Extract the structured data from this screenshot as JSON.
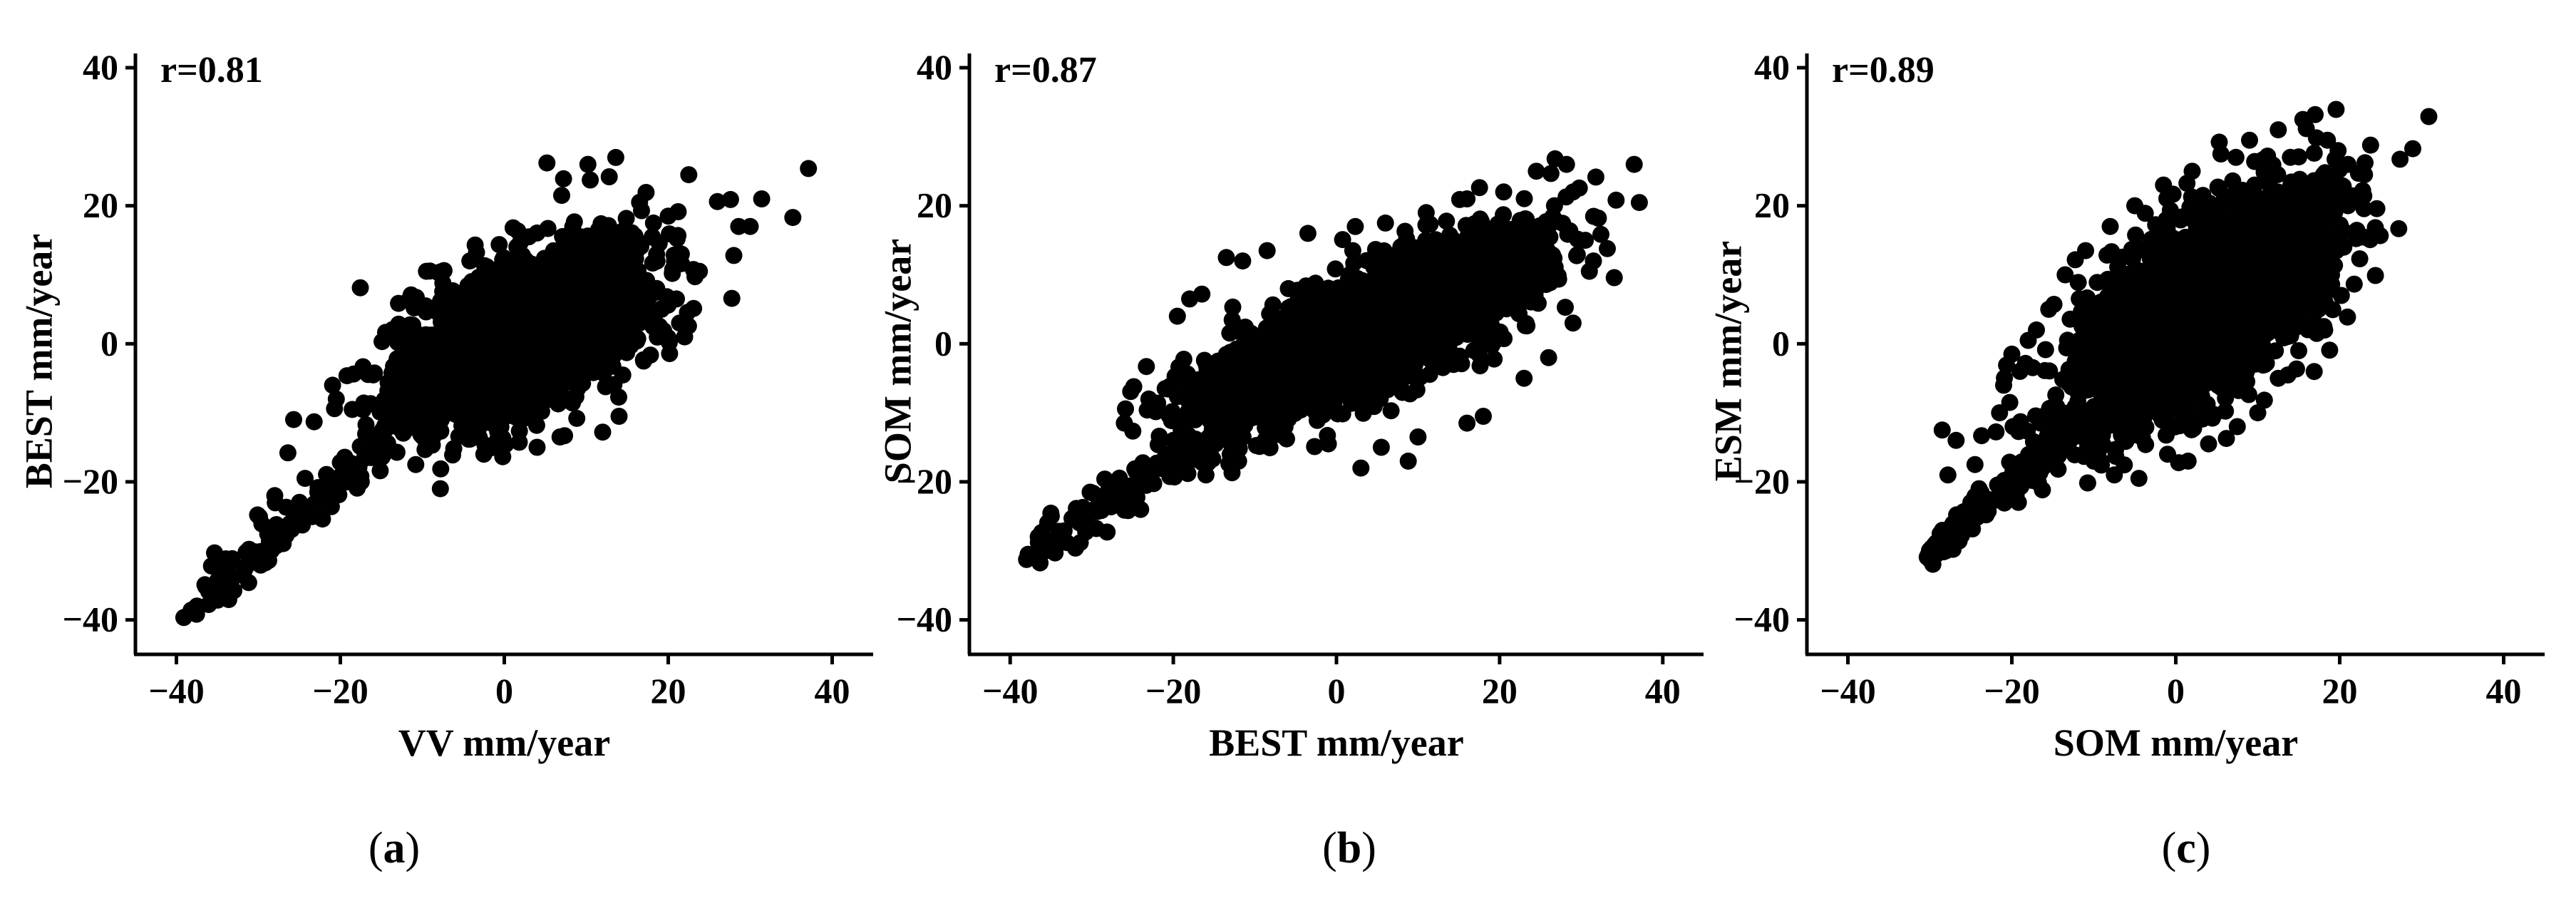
{
  "chart_data": [
    {
      "type": "scatter",
      "title": "",
      "panel_label": "a",
      "annotation": "r=0.81",
      "r": 0.81,
      "xlabel": "VV mm/year",
      "ylabel": "BEST mm/year",
      "xlim": [
        -45,
        45
      ],
      "ylim": [
        -45,
        40
      ],
      "xticks": [
        -40,
        -20,
        0,
        20,
        40
      ],
      "yticks": [
        -40,
        -20,
        0,
        20,
        40
      ],
      "xtick_labels": [
        "−40",
        "−20",
        "0",
        "20",
        "40"
      ],
      "ytick_labels": [
        "−40",
        "−20",
        "0",
        "20",
        "40"
      ],
      "grid": false,
      "legend": "none",
      "point_color": "#000000",
      "cloud": {
        "n": 2600,
        "center": [
          2,
          1
        ],
        "sd_major": 8.5,
        "sd_minor": 4.5,
        "slope": 0.72,
        "seed": 11
      },
      "tail": {
        "n": 120,
        "from": [
          -38,
          -38
        ],
        "to": [
          -12,
          -12
        ],
        "spread": 1.6,
        "seed": 21
      },
      "points": [
        [
          -38.2,
          -38.6
        ],
        [
          -37.5,
          -38.0
        ],
        [
          -35.2,
          -36.8
        ],
        [
          -33.0,
          -33.8
        ],
        [
          -31.5,
          -30.2
        ],
        [
          -30.1,
          -24.8
        ],
        [
          -28.0,
          -22.0
        ],
        [
          -26.4,
          -15.8
        ],
        [
          -23.2,
          -11.3
        ],
        [
          -20.5,
          -8.0
        ],
        [
          -16.0,
          -4.5
        ],
        [
          -14.2,
          -6.8
        ],
        [
          -13.0,
          0.2
        ],
        [
          -12.4,
          2.5
        ],
        [
          -11.0,
          5.2
        ],
        [
          -9.5,
          10.5
        ],
        [
          -7.5,
          8.8
        ],
        [
          -4.2,
          12.0
        ],
        [
          -2.0,
          10.4
        ],
        [
          0.8,
          10.0
        ],
        [
          3.0,
          15.5
        ],
        [
          5.2,
          26.2
        ],
        [
          7.0,
          21.5
        ],
        [
          10.2,
          26.0
        ],
        [
          11.5,
          16.5
        ],
        [
          12.8,
          24.2
        ],
        [
          13.6,
          27.0
        ],
        [
          16.5,
          20.5
        ],
        [
          18.2,
          17.5
        ],
        [
          20.0,
          18.5
        ],
        [
          21.6,
          13.0
        ],
        [
          22.5,
          24.5
        ],
        [
          23.8,
          10.5
        ],
        [
          26.0,
          20.6
        ],
        [
          27.6,
          20.9
        ],
        [
          28.0,
          12.8
        ],
        [
          28.6,
          17.0
        ],
        [
          30.0,
          17.0
        ],
        [
          31.4,
          21.0
        ],
        [
          35.2,
          18.3
        ],
        [
          37.1,
          25.4
        ],
        [
          14.0,
          -10.5
        ],
        [
          12.0,
          -12.8
        ],
        [
          6.8,
          -13.5
        ],
        [
          4.0,
          -15.0
        ],
        [
          -2.5,
          -16.0
        ],
        [
          -7.8,
          -21.0
        ],
        [
          -10.8,
          -17.5
        ],
        [
          -17.5,
          -19.2
        ],
        [
          -20.0,
          -17.2
        ],
        [
          -21.3,
          -20.0
        ],
        [
          -27.8,
          -26.2
        ],
        [
          -24.3,
          -19.5
        ],
        [
          18.6,
          8.0
        ],
        [
          21.0,
          6.5
        ],
        [
          22.0,
          1.0
        ],
        [
          17.0,
          -2.5
        ],
        [
          16.5,
          3.0
        ]
      ]
    },
    {
      "type": "scatter",
      "title": "",
      "panel_label": "b",
      "annotation": "r=0.87",
      "r": 0.87,
      "xlabel": "BEST mm/year",
      "ylabel": "SOM mm/year",
      "xlim": [
        -45,
        45
      ],
      "ylim": [
        -45,
        40
      ],
      "xticks": [
        -40,
        -20,
        0,
        20,
        40
      ],
      "yticks": [
        -40,
        -20,
        0,
        20,
        40
      ],
      "xtick_labels": [
        "−40",
        "−20",
        "0",
        "20",
        "40"
      ],
      "ytick_labels": [
        "−40",
        "−20",
        "0",
        "20",
        "40"
      ],
      "grid": false,
      "legend": "none",
      "point_color": "#000000",
      "cloud": {
        "n": 3000,
        "center": [
          4,
          2
        ],
        "sd_major": 11.0,
        "sd_minor": 3.6,
        "slope": 0.6,
        "seed": 33
      },
      "tail": {
        "n": 120,
        "from": [
          -38,
          -30
        ],
        "to": [
          -14,
          -13
        ],
        "spread": 1.4,
        "seed": 43
      },
      "points": [
        [
          -37.8,
          -30.5
        ],
        [
          -36.0,
          -28.5
        ],
        [
          -34.5,
          -30.3
        ],
        [
          -32.0,
          -29.6
        ],
        [
          -31.0,
          -26.0
        ],
        [
          -30.2,
          -21.5
        ],
        [
          -28.4,
          -19.6
        ],
        [
          -26.0,
          -11.5
        ],
        [
          -23.0,
          -8.0
        ],
        [
          -21.0,
          -6.5
        ],
        [
          -19.5,
          4.0
        ],
        [
          -18.0,
          6.5
        ],
        [
          -16.5,
          7.2
        ],
        [
          -13.5,
          12.5
        ],
        [
          -11.5,
          12.0
        ],
        [
          -8.5,
          13.5
        ],
        [
          -3.5,
          16.0
        ],
        [
          2.0,
          13.5
        ],
        [
          6.0,
          17.5
        ],
        [
          11.0,
          19.0
        ],
        [
          16.0,
          21.0
        ],
        [
          20.5,
          22.0
        ],
        [
          24.5,
          25.0
        ],
        [
          26.8,
          26.8
        ],
        [
          28.2,
          26.0
        ],
        [
          29.0,
          22.0
        ],
        [
          36.5,
          26.0
        ],
        [
          31.0,
          10.5
        ],
        [
          31.5,
          12.0
        ],
        [
          30.5,
          15.0
        ],
        [
          29.0,
          3.0
        ],
        [
          26.0,
          -2.0
        ],
        [
          23.0,
          -5.0
        ],
        [
          18.0,
          -10.5
        ],
        [
          16.0,
          -11.5
        ],
        [
          10.0,
          -13.5
        ],
        [
          8.8,
          -17.0
        ],
        [
          5.5,
          -15.0
        ],
        [
          3.0,
          -18.0
        ],
        [
          -1.0,
          -14.5
        ],
        [
          -6.5,
          -12.0
        ],
        [
          -12.0,
          -17.0
        ],
        [
          -17.0,
          -15.0
        ],
        [
          -20.0,
          -14.0
        ],
        [
          -24.0,
          -24.0
        ],
        [
          -27.0,
          -22.0
        ],
        [
          -21.0,
          -17.5
        ],
        [
          -16.0,
          -19.0
        ]
      ]
    },
    {
      "type": "scatter",
      "title": "",
      "panel_label": "c",
      "annotation": "r=0.89",
      "r": 0.89,
      "xlabel": "SOM mm/year",
      "ylabel": "ESM mm/year",
      "xlim": [
        -45,
        45
      ],
      "ylim": [
        -45,
        40
      ],
      "xticks": [
        -40,
        -20,
        0,
        20,
        40
      ],
      "yticks": [
        -40,
        -20,
        0,
        20,
        40
      ],
      "xtick_labels": [
        "−40",
        "−20",
        "0",
        "20",
        "40"
      ],
      "ytick_labels": [
        "−40",
        "−20",
        "0",
        "20",
        "40"
      ],
      "grid": false,
      "legend": "none",
      "point_color": "#000000",
      "cloud": {
        "n": 3000,
        "center": [
          3,
          5
        ],
        "sd_major": 10.0,
        "sd_minor": 4.6,
        "slope": 1.1,
        "seed": 55
      },
      "tail": {
        "n": 140,
        "from": [
          -30,
          -30.5
        ],
        "to": [
          -12,
          -12
        ],
        "spread": 1.1,
        "seed": 65
      },
      "points": [
        [
          -30.2,
          -30.6
        ],
        [
          -29.0,
          -29.5
        ],
        [
          -27.5,
          -28.2
        ],
        [
          -26.0,
          -26.0
        ],
        [
          -25.0,
          -23.0
        ],
        [
          -24.0,
          -21.0
        ],
        [
          -27.8,
          -19.0
        ],
        [
          -28.5,
          -12.5
        ],
        [
          -26.8,
          -14.0
        ],
        [
          -24.5,
          -17.5
        ],
        [
          -21.5,
          -10.0
        ],
        [
          -19.0,
          -4.0
        ],
        [
          -18.0,
          0.5
        ],
        [
          -20.0,
          -1.5
        ],
        [
          -21.0,
          -6.0
        ],
        [
          -17.0,
          2.0
        ],
        [
          -15.5,
          5.0
        ],
        [
          -13.5,
          10.0
        ],
        [
          -11.0,
          13.5
        ],
        [
          -8.0,
          17.0
        ],
        [
          -5.0,
          20.0
        ],
        [
          -1.5,
          23.0
        ],
        [
          2.0,
          25.0
        ],
        [
          5.5,
          27.5
        ],
        [
          9.0,
          29.5
        ],
        [
          12.5,
          31.0
        ],
        [
          15.5,
          32.5
        ],
        [
          17.0,
          33.2
        ],
        [
          18.5,
          29.5
        ],
        [
          19.8,
          28.0
        ],
        [
          21.0,
          26.0
        ],
        [
          22.8,
          22.2
        ],
        [
          21.0,
          20.0
        ],
        [
          20.5,
          14.0
        ],
        [
          19.0,
          10.0
        ],
        [
          18.0,
          7.5
        ],
        [
          20.2,
          7.0
        ],
        [
          17.2,
          1.5
        ],
        [
          15.0,
          -1.0
        ],
        [
          12.5,
          -5.0
        ],
        [
          10.0,
          -10.0
        ],
        [
          7.5,
          -12.0
        ],
        [
          4.0,
          -14.5
        ],
        [
          1.5,
          -17.0
        ],
        [
          -1.0,
          -16.0
        ],
        [
          -4.5,
          -19.5
        ],
        [
          -7.5,
          -19.0
        ],
        [
          -10.0,
          -17.0
        ],
        [
          -13.5,
          -15.0
        ],
        [
          -16.0,
          -16.0
        ],
        [
          -19.0,
          -17.5
        ],
        [
          -22.0,
          -22.5
        ],
        [
          -16.5,
          -11.5
        ]
      ]
    }
  ]
}
